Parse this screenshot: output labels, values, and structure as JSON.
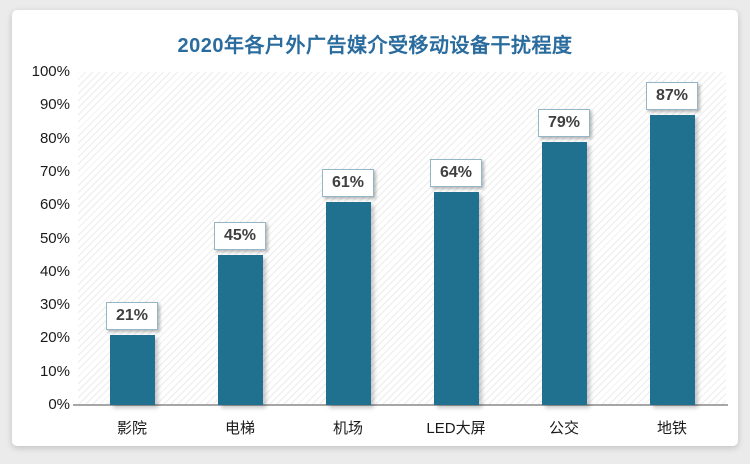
{
  "page": {
    "background_color": "#ebebeb",
    "card_background_color": "#ffffff"
  },
  "chart_data": {
    "type": "bar",
    "title": "2020年各户外广告媒介受移动设备干扰程度",
    "categories": [
      "影院",
      "电梯",
      "机场",
      "LED大屏",
      "公交",
      "地铁"
    ],
    "values": [
      21,
      45,
      61,
      64,
      79,
      87
    ],
    "value_labels": [
      "21%",
      "45%",
      "61%",
      "64%",
      "79%",
      "87%"
    ],
    "xlabel": "",
    "ylabel": "",
    "ylim": [
      0,
      100
    ],
    "ytick_step": 10,
    "ytick_labels": [
      "0%",
      "10%",
      "20%",
      "30%",
      "40%",
      "50%",
      "60%",
      "70%",
      "80%",
      "90%",
      "100%"
    ],
    "grid": false,
    "legend": false,
    "colors": {
      "bar": "#20708F",
      "title": "#2A6C9E",
      "axis_line": "#A6A6A6",
      "tick_text": "#1A1A1A",
      "value_label_text": "#3F3F3F",
      "value_label_border": "#94B6C7"
    }
  }
}
